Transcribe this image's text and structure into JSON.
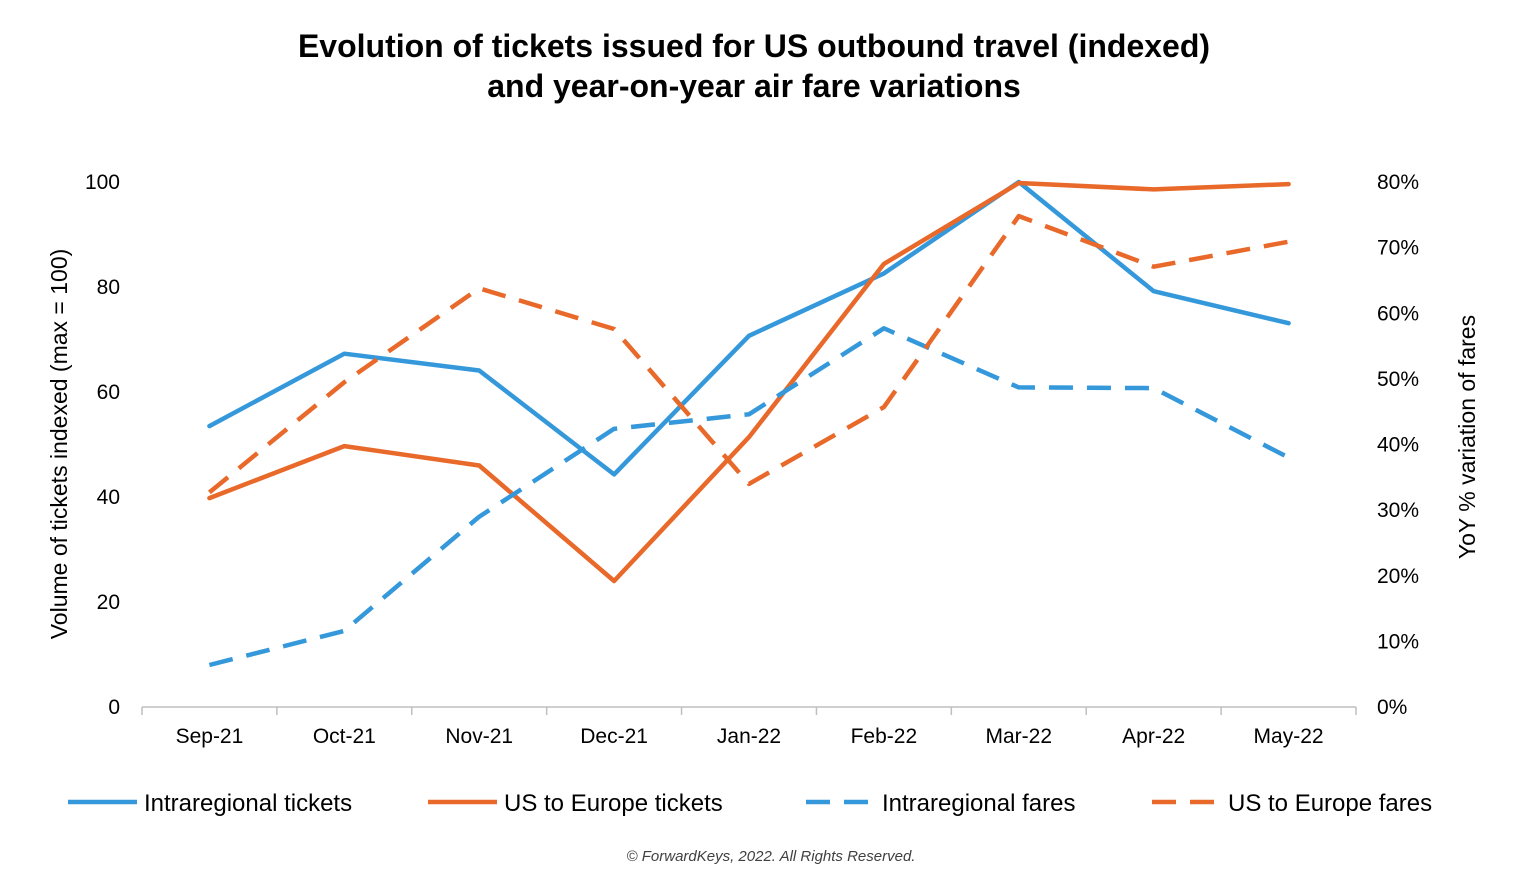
{
  "chart_data": {
    "type": "line",
    "title": "Evolution of tickets issued for US outbound travel (indexed)",
    "subtitle": "and year-on-year air fare variations",
    "categories": [
      "Sep-21",
      "Oct-21",
      "Nov-21",
      "Dec-21",
      "Jan-22",
      "Feb-22",
      "Mar-22",
      "Apr-22",
      "May-22"
    ],
    "y_left": {
      "label": "Volume of tickets indexed (max = 100)",
      "range": [
        0,
        100
      ],
      "ticks": [
        0,
        20,
        40,
        60,
        80,
        100
      ],
      "tick_labels": [
        "0",
        "20",
        "40",
        "60",
        "80",
        "100"
      ]
    },
    "y_right": {
      "label": "YoY % variation of fares",
      "range": [
        0,
        80
      ],
      "ticks": [
        0,
        10,
        20,
        30,
        40,
        50,
        60,
        70,
        80
      ],
      "tick_labels": [
        "0%",
        "10%",
        "20%",
        "30%",
        "40%",
        "50%",
        "60%",
        "70%",
        "80%"
      ]
    },
    "series": [
      {
        "name": "Intraregional tickets",
        "axis": "left",
        "dash": "solid",
        "color": "#3498DB",
        "values": [
          53.5,
          67.3,
          64.1,
          44.3,
          70.7,
          82.6,
          100.0,
          79.2,
          73.1
        ]
      },
      {
        "name": "US to Europe tickets",
        "axis": "left",
        "dash": "solid",
        "color": "#E8692A",
        "values": [
          39.8,
          49.7,
          46.0,
          24.0,
          51.4,
          84.4,
          99.8,
          98.6,
          99.6
        ]
      },
      {
        "name": "Intraregional fares",
        "axis": "right",
        "dash": "dashed",
        "color": "#3498DB",
        "values": [
          6.4,
          11.6,
          29.0,
          42.4,
          44.6,
          57.7,
          48.7,
          48.6,
          38.0
        ]
      },
      {
        "name": "US to Europe fares",
        "axis": "right",
        "dash": "dashed",
        "color": "#E8692A",
        "values": [
          32.7,
          49.5,
          63.8,
          57.6,
          34.0,
          45.7,
          74.8,
          67.1,
          70.9
        ]
      }
    ],
    "grid": false,
    "legend_position": "bottom"
  },
  "copyright": "© ForwardKeys, 2022. All Rights Reserved."
}
